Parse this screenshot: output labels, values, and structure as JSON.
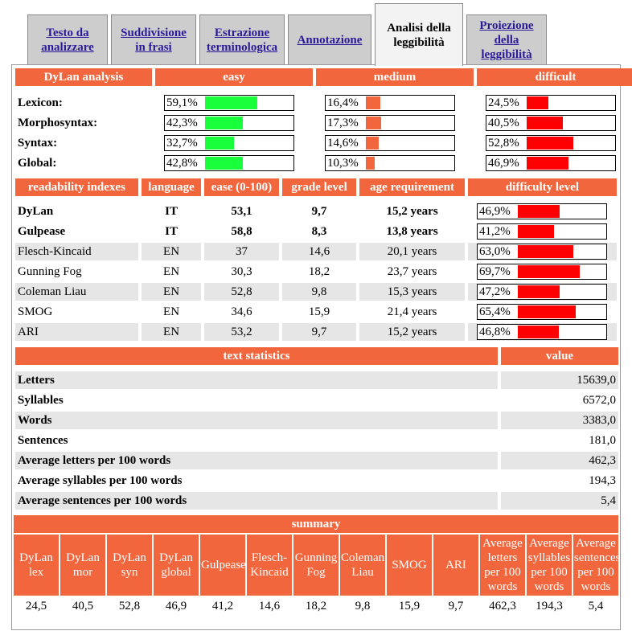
{
  "tabs": [
    {
      "label": "Testo da analizzare",
      "link": true
    },
    {
      "label": "Suddivisione in frasi",
      "link": true
    },
    {
      "label": "Estrazione terminologica",
      "link": true
    },
    {
      "label": "Annotazione",
      "link": true
    },
    {
      "label": "Analisi della leggibilità",
      "link": false
    },
    {
      "label": "Proiezione della leggibilità",
      "link": true
    }
  ],
  "dylan": {
    "headers": [
      "DyLan analysis",
      "easy",
      "medium",
      "difficult"
    ],
    "rows": [
      {
        "label": "Lexicon:",
        "easy": "59,1%",
        "easy_v": 59.1,
        "medium": "16,4%",
        "medium_v": 16.4,
        "difficult": "24,5%",
        "difficult_v": 24.5
      },
      {
        "label": "Morphosyntax:",
        "easy": "42,3%",
        "easy_v": 42.3,
        "medium": "17,3%",
        "medium_v": 17.3,
        "difficult": "40,5%",
        "difficult_v": 40.5
      },
      {
        "label": "Syntax:",
        "easy": "32,7%",
        "easy_v": 32.7,
        "medium": "14,6%",
        "medium_v": 14.6,
        "difficult": "52,8%",
        "difficult_v": 52.8
      },
      {
        "label": "Global:",
        "easy": "42,8%",
        "easy_v": 42.8,
        "medium": "10,3%",
        "medium_v": 10.3,
        "difficult": "46,9%",
        "difficult_v": 46.9
      }
    ],
    "colors": {
      "easy": "#19ff3c",
      "medium": "#f2663d",
      "difficult": "#ff0000"
    }
  },
  "indexes": {
    "headers": [
      "readability indexes",
      "language",
      "ease (0-100)",
      "grade level",
      "age requirement",
      "difficulty level"
    ],
    "rows": [
      {
        "name": "DyLan",
        "lang": "IT",
        "ease": "53,1",
        "grade": "9,7",
        "age": "15,2 years",
        "diff": "46,9%",
        "diff_v": 46.9,
        "bold": true
      },
      {
        "name": "Gulpease",
        "lang": "IT",
        "ease": "58,8",
        "grade": "8,3",
        "age": "13,8 years",
        "diff": "41,2%",
        "diff_v": 41.2,
        "bold": true
      },
      {
        "name": "Flesch-Kincaid",
        "lang": "EN",
        "ease": "37",
        "grade": "14,6",
        "age": "20,1 years",
        "diff": "63,0%",
        "diff_v": 63.0,
        "bold": false
      },
      {
        "name": "Gunning Fog",
        "lang": "EN",
        "ease": "30,3",
        "grade": "18,2",
        "age": "23,7 years",
        "diff": "69,7%",
        "diff_v": 69.7,
        "bold": false
      },
      {
        "name": "Coleman Liau",
        "lang": "EN",
        "ease": "52,8",
        "grade": "9,8",
        "age": "15,3 years",
        "diff": "47,2%",
        "diff_v": 47.2,
        "bold": false
      },
      {
        "name": "SMOG",
        "lang": "EN",
        "ease": "34,6",
        "grade": "15,9",
        "age": "21,4 years",
        "diff": "65,4%",
        "diff_v": 65.4,
        "bold": false
      },
      {
        "name": "ARI",
        "lang": "EN",
        "ease": "53,2",
        "grade": "9,7",
        "age": "15,2 years",
        "diff": "46,8%",
        "diff_v": 46.8,
        "bold": false
      }
    ]
  },
  "stats": {
    "headers": [
      "text statistics",
      "value"
    ],
    "rows": [
      {
        "label": "Letters",
        "value": "15639,0"
      },
      {
        "label": "Syllables",
        "value": "6572,0"
      },
      {
        "label": "Words",
        "value": "3383,0"
      },
      {
        "label": "Sentences",
        "value": "181,0"
      },
      {
        "label": "Average letters per 100 words",
        "value": "462,3"
      },
      {
        "label": "Average syllables per 100 words",
        "value": "194,3"
      },
      {
        "label": "Average sentences per 100 words",
        "value": "5,4"
      }
    ]
  },
  "summary": {
    "title": "summary",
    "headers": [
      "DyLan lex",
      "DyLan mor",
      "DyLan syn",
      "DyLan global",
      "Gulpease",
      "Flesch-Kincaid",
      "Gunning Fog",
      "Coleman Liau",
      "SMOG",
      "ARI",
      "Average letters per 100 words",
      "Average syllables per 100 words",
      "Average sentences per 100 words"
    ],
    "values": [
      "24,5",
      "40,5",
      "52,8",
      "46,9",
      "41,2",
      "14,6",
      "18,2",
      "9,8",
      "15,9",
      "9,7",
      "462,3",
      "194,3",
      "5,4"
    ]
  }
}
